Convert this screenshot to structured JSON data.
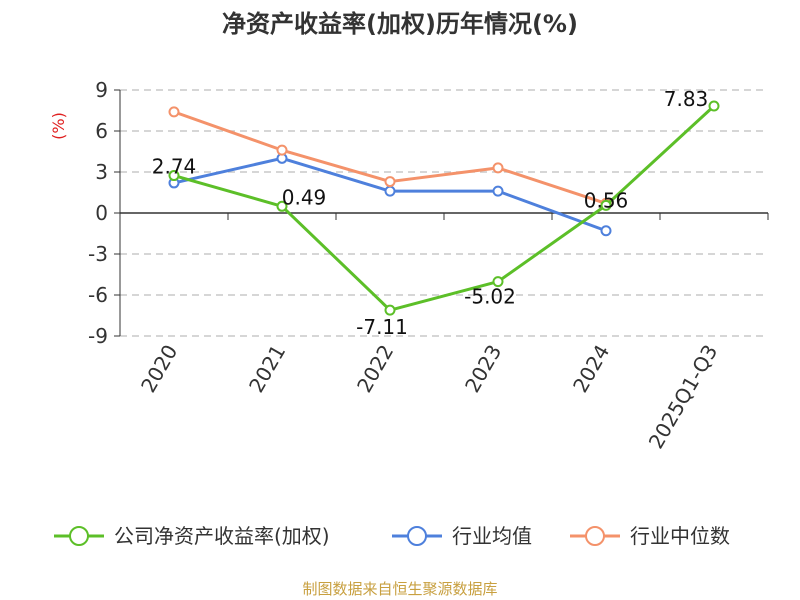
{
  "chart_data": {
    "type": "line",
    "title": "净资产收益率(加权)历年情况(%)",
    "y_unit": "(%)",
    "categories": [
      "2020",
      "2021",
      "2022",
      "2023",
      "2024",
      "2025Q1-Q3"
    ],
    "ylim": [
      -9,
      9
    ],
    "yticks": [
      9,
      6,
      3,
      0,
      -3,
      -6,
      -9
    ],
    "grid": true,
    "legend_position": "bottom",
    "series": [
      {
        "name": "公司净资产收益率(加权)",
        "color": "#5cbf28",
        "values": [
          2.74,
          0.49,
          -7.11,
          -5.02,
          0.56,
          7.83
        ],
        "labels": [
          "2.74",
          "0.49",
          "-7.11",
          "-5.02",
          "0.56",
          "7.83"
        ]
      },
      {
        "name": "行业均值",
        "color": "#4e80dc",
        "values": [
          2.2,
          4.0,
          1.6,
          1.6,
          -1.3,
          null
        ]
      },
      {
        "name": "行业中位数",
        "color": "#f4926a",
        "values": [
          7.4,
          4.6,
          2.3,
          3.3,
          0.7,
          null
        ]
      }
    ]
  },
  "source": "制图数据来自恒生聚源数据库",
  "colors": {
    "unit": "#e02020",
    "source": "#c8a040",
    "grid": "#c8c8c8",
    "axis": "#333333"
  }
}
